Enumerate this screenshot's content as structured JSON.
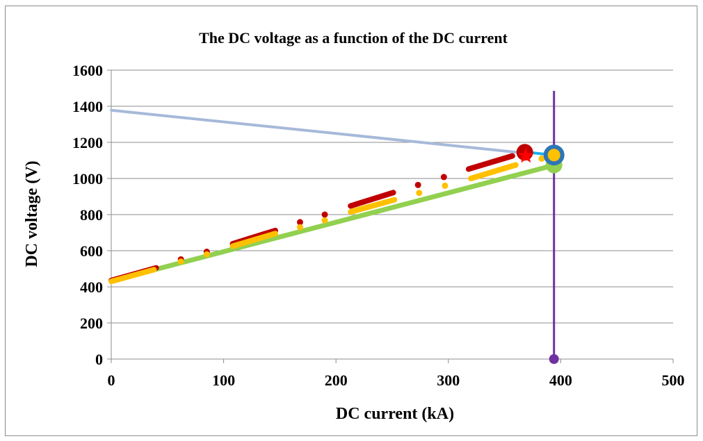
{
  "chart_data": {
    "type": "line",
    "title": "The DC voltage as a function of the DC current",
    "xlabel": "DC current (kA)",
    "ylabel": "DC voltage (V)",
    "xlim": [
      0,
      500
    ],
    "ylim": [
      0,
      1600
    ],
    "xticks": [
      "0",
      "100",
      "200",
      "300",
      "400",
      "500"
    ],
    "yticks": [
      "0",
      "200",
      "400",
      "600",
      "800",
      "1000",
      "1200",
      "1400",
      "1600"
    ],
    "grid": "horizontal",
    "legend": "none",
    "series": [
      {
        "color": "#92d050",
        "style": "thick-line",
        "points": [
          [
            0,
            432
          ],
          [
            395,
            1075
          ]
        ]
      },
      {
        "color": "#c00000",
        "style": "thick-dashed",
        "segments": [
          [
            [
              0,
              435
            ],
            [
              40,
              505
            ]
          ],
          [
            [
              108,
              638
            ],
            [
              146,
              712
            ]
          ],
          [
            [
              213,
              848
            ],
            [
              251,
              922
            ]
          ],
          [
            [
              318,
              1052
            ],
            [
              357,
              1125
            ]
          ]
        ],
        "dots": [
          [
            62,
            552
          ],
          [
            85,
            594
          ],
          [
            168,
            758
          ],
          [
            190,
            800
          ],
          [
            273,
            964
          ],
          [
            296,
            1008
          ]
        ]
      },
      {
        "color": "#ffc000",
        "style": "thick-dashed",
        "segments": [
          [
            [
              0,
              430
            ],
            [
              38,
              495
            ]
          ],
          [
            [
              108,
              625
            ],
            [
              146,
              695
            ]
          ],
          [
            [
              213,
              815
            ],
            [
              252,
              882
            ]
          ],
          [
            [
              320,
              1000
            ],
            [
              360,
              1075
            ]
          ]
        ],
        "dots": [
          [
            62,
            540
          ],
          [
            85,
            580
          ],
          [
            168,
            730
          ],
          [
            190,
            768
          ],
          [
            274,
            920
          ],
          [
            297,
            960
          ],
          [
            383,
            1110
          ]
        ]
      },
      {
        "color": "#a6b9d9",
        "style": "line",
        "points": [
          [
            0,
            1378
          ],
          [
            366,
            1142
          ]
        ]
      },
      {
        "color": "#1ab0e8",
        "style": "line",
        "points": [
          [
            366,
            1148
          ],
          [
            393,
            1130
          ]
        ]
      }
    ],
    "markers": [
      {
        "shape": "circle",
        "color": "#c00000",
        "x": 368,
        "y": 1145
      },
      {
        "shape": "star",
        "color": "#ff0000",
        "x": 369,
        "y": 1125
      },
      {
        "shape": "circle",
        "color": "#92d050",
        "x": 394,
        "y": 1075
      },
      {
        "shape": "ring",
        "color": "#2e75b6",
        "fill": "#ffc000",
        "x": 394,
        "y": 1130
      },
      {
        "shape": "circle",
        "color": "#7030a0",
        "x": 394,
        "y": 0
      }
    ],
    "vline": {
      "x": 394,
      "y_top": 1485,
      "color": "#7030a0"
    }
  }
}
